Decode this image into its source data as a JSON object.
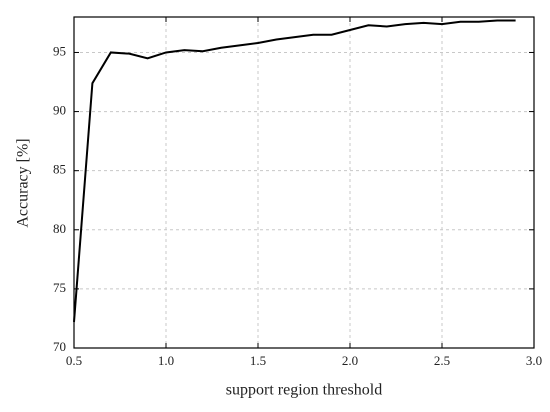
{
  "chart_data": {
    "type": "line",
    "x_label": "support region threshold",
    "y_label": "Accuracy [%]",
    "x": [
      0.5,
      0.6,
      0.7,
      0.8,
      0.9,
      1.0,
      1.1,
      1.2,
      1.3,
      1.4,
      1.5,
      1.6,
      1.7,
      1.8,
      1.9,
      2.0,
      2.1,
      2.2,
      2.3,
      2.4,
      2.5,
      2.6,
      2.7,
      2.8,
      2.9
    ],
    "series": [
      {
        "color": "#000000",
        "values": [
          72.2,
          92.4,
          95.0,
          94.9,
          94.5,
          95.0,
          95.2,
          95.1,
          95.4,
          95.6,
          95.8,
          96.1,
          96.3,
          96.5,
          96.5,
          96.9,
          97.3,
          97.2,
          97.4,
          97.5,
          97.4,
          97.6,
          97.6,
          97.7,
          97.7
        ]
      }
    ],
    "xlim": [
      0.5,
      3.0
    ],
    "xticks": [
      0.5,
      {
        "value": 1.0,
        "label": "1.0"
      },
      1.5,
      {
        "value": 2.0,
        "label": "2.0"
      },
      2.5,
      {
        "value": 3.0,
        "label": "3.0"
      }
    ],
    "ylim": [
      70,
      98
    ],
    "yticks": [
      70,
      75,
      80,
      85,
      90,
      95
    ],
    "grid": true
  }
}
